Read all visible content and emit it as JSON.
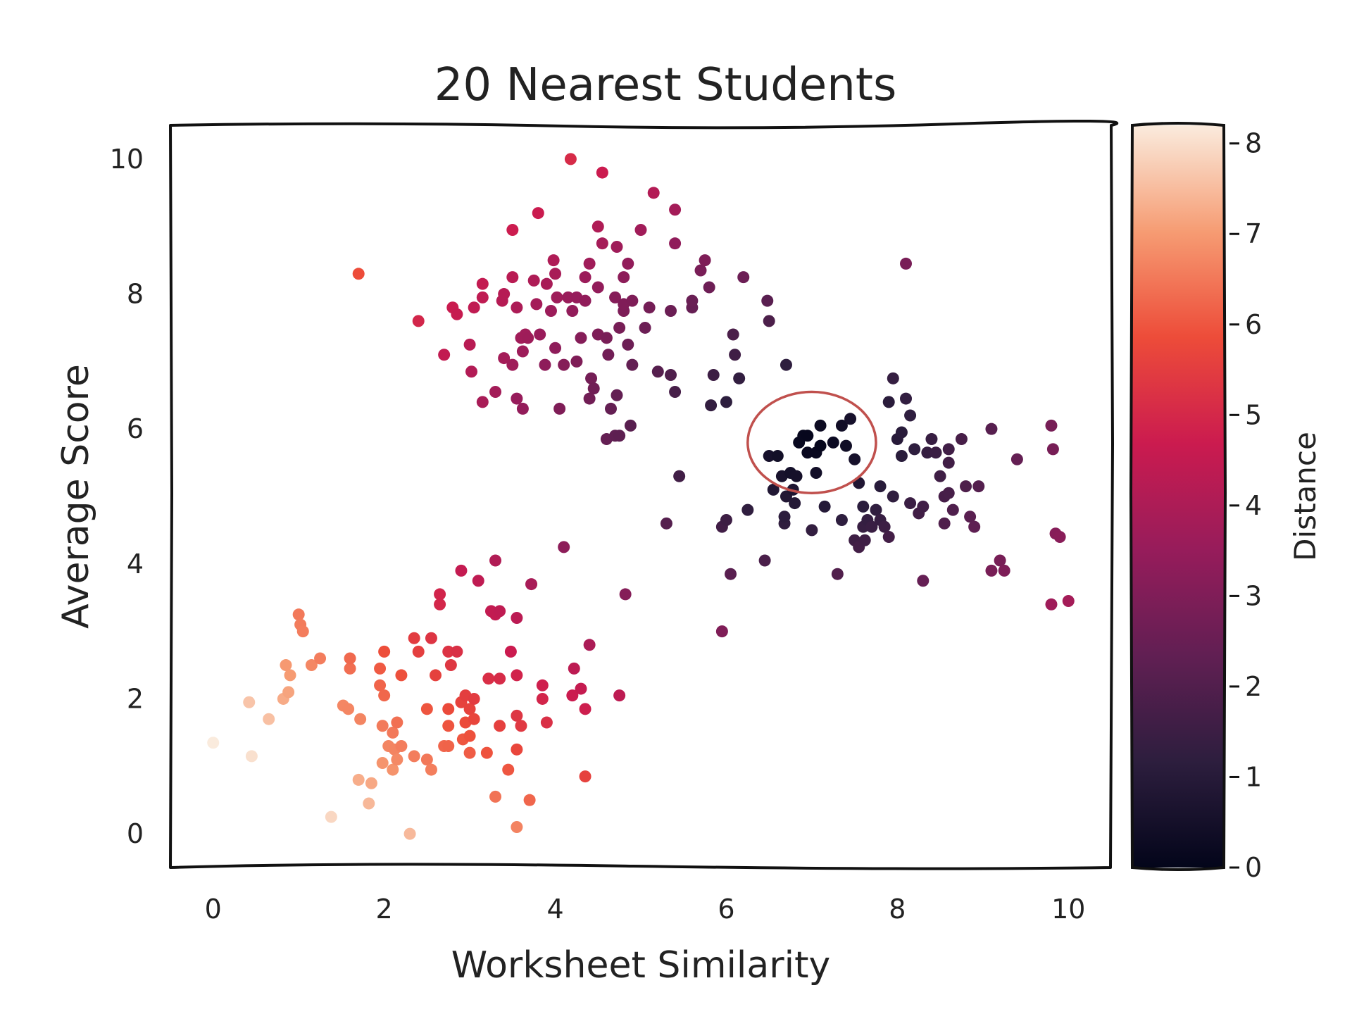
{
  "chart_data": {
    "type": "scatter",
    "title": "20 Nearest Students",
    "xlabel": "Worksheet Similarity",
    "ylabel": "Average Score",
    "xlim": [
      -0.5,
      10.5
    ],
    "ylim": [
      -0.5,
      10.5
    ],
    "xticks": [
      "0",
      "2",
      "4",
      "6",
      "8",
      "10"
    ],
    "yticks": [
      "0",
      "2",
      "4",
      "6",
      "8",
      "10"
    ],
    "grid": false,
    "query_point": [
      7.0,
      5.8
    ],
    "nearest_circle": {
      "center": [
        7.0,
        5.8
      ],
      "rx": 0.75,
      "ry": 0.75
    },
    "colorbar": {
      "label": "Distance",
      "range": [
        0,
        8.2
      ],
      "ticks": [
        "0",
        "1",
        "2",
        "3",
        "4",
        "5",
        "6",
        "7",
        "8"
      ],
      "colormap": "rocket",
      "colors": [
        "#03051a",
        "#2d1e3e",
        "#611f53",
        "#971c5b",
        "#cb1b4f",
        "#ed4c39",
        "#f69c73",
        "#faebdd"
      ]
    },
    "points": [
      [
        0.0,
        1.35
      ],
      [
        0.45,
        1.15
      ],
      [
        0.42,
        1.95
      ],
      [
        0.65,
        1.7
      ],
      [
        0.82,
        2.0
      ],
      [
        0.88,
        2.1
      ],
      [
        0.9,
        2.35
      ],
      [
        0.85,
        2.5
      ],
      [
        1.0,
        3.25
      ],
      [
        1.02,
        3.1
      ],
      [
        1.05,
        3.0
      ],
      [
        1.15,
        2.5
      ],
      [
        1.25,
        2.6
      ],
      [
        1.38,
        0.25
      ],
      [
        1.52,
        1.9
      ],
      [
        1.58,
        1.85
      ],
      [
        1.6,
        2.45
      ],
      [
        1.6,
        2.6
      ],
      [
        1.7,
        8.3
      ],
      [
        1.72,
        1.7
      ],
      [
        1.7,
        0.8
      ],
      [
        1.82,
        0.45
      ],
      [
        1.85,
        0.75
      ],
      [
        1.95,
        2.2
      ],
      [
        1.95,
        2.45
      ],
      [
        2.0,
        2.05
      ],
      [
        1.98,
        1.6
      ],
      [
        1.98,
        1.05
      ],
      [
        2.05,
        1.3
      ],
      [
        2.0,
        2.7
      ],
      [
        2.1,
        1.5
      ],
      [
        2.12,
        1.25
      ],
      [
        2.1,
        0.95
      ],
      [
        2.15,
        1.1
      ],
      [
        2.15,
        1.65
      ],
      [
        2.2,
        2.35
      ],
      [
        2.2,
        1.3
      ],
      [
        2.3,
        0.0
      ],
      [
        2.35,
        1.15
      ],
      [
        2.4,
        2.7
      ],
      [
        2.35,
        2.9
      ],
      [
        2.4,
        7.6
      ],
      [
        2.5,
        1.1
      ],
      [
        2.5,
        1.85
      ],
      [
        2.55,
        0.95
      ],
      [
        2.55,
        2.9
      ],
      [
        2.6,
        2.35
      ],
      [
        2.65,
        3.4
      ],
      [
        2.65,
        3.55
      ],
      [
        2.7,
        1.3
      ],
      [
        2.75,
        1.6
      ],
      [
        2.75,
        1.85
      ],
      [
        2.75,
        1.3
      ],
      [
        2.7,
        7.1
      ],
      [
        2.75,
        2.7
      ],
      [
        2.78,
        2.5
      ],
      [
        2.8,
        7.8
      ],
      [
        2.85,
        7.7
      ],
      [
        2.85,
        2.7
      ],
      [
        2.9,
        1.95
      ],
      [
        2.92,
        1.4
      ],
      [
        2.9,
        3.9
      ],
      [
        2.95,
        1.65
      ],
      [
        2.95,
        2.05
      ],
      [
        3.0,
        1.2
      ],
      [
        3.0,
        1.45
      ],
      [
        3.0,
        1.85
      ],
      [
        3.0,
        7.25
      ],
      [
        3.02,
        6.85
      ],
      [
        3.05,
        2.0
      ],
      [
        3.05,
        1.7
      ],
      [
        3.05,
        7.8
      ],
      [
        3.1,
        3.75
      ],
      [
        3.15,
        6.4
      ],
      [
        3.15,
        8.15
      ],
      [
        3.15,
        7.95
      ],
      [
        3.2,
        1.2
      ],
      [
        3.22,
        2.3
      ],
      [
        3.25,
        3.3
      ],
      [
        3.3,
        3.25
      ],
      [
        3.3,
        0.55
      ],
      [
        3.3,
        4.05
      ],
      [
        3.3,
        6.55
      ],
      [
        3.35,
        3.3
      ],
      [
        3.35,
        1.6
      ],
      [
        3.35,
        2.3
      ],
      [
        3.38,
        7.9
      ],
      [
        3.4,
        7.05
      ],
      [
        3.4,
        8.0
      ],
      [
        3.45,
        0.95
      ],
      [
        3.48,
        2.7
      ],
      [
        3.5,
        6.95
      ],
      [
        3.55,
        1.25
      ],
      [
        3.5,
        8.25
      ],
      [
        3.55,
        3.2
      ],
      [
        3.55,
        2.35
      ],
      [
        3.55,
        1.75
      ],
      [
        3.55,
        6.45
      ],
      [
        3.5,
        8.95
      ],
      [
        3.55,
        0.1
      ],
      [
        3.55,
        7.8
      ],
      [
        3.6,
        7.35
      ],
      [
        3.6,
        1.6
      ],
      [
        3.62,
        6.3
      ],
      [
        3.62,
        7.15
      ],
      [
        3.65,
        7.4
      ],
      [
        3.68,
        7.35
      ],
      [
        3.7,
        0.5
      ],
      [
        3.72,
        3.7
      ],
      [
        3.75,
        8.2
      ],
      [
        3.78,
        7.85
      ],
      [
        3.8,
        9.2
      ],
      [
        3.82,
        7.4
      ],
      [
        3.85,
        2.2
      ],
      [
        3.85,
        2.0
      ],
      [
        3.88,
        6.95
      ],
      [
        3.9,
        1.65
      ],
      [
        3.9,
        8.15
      ],
      [
        3.95,
        7.75
      ],
      [
        3.98,
        8.5
      ],
      [
        4.0,
        7.2
      ],
      [
        4.0,
        8.3
      ],
      [
        4.02,
        7.95
      ],
      [
        4.05,
        6.3
      ],
      [
        4.1,
        4.25
      ],
      [
        4.1,
        6.95
      ],
      [
        4.15,
        7.95
      ],
      [
        4.18,
        10.0
      ],
      [
        4.2,
        7.75
      ],
      [
        4.25,
        7.0
      ],
      [
        4.2,
        2.05
      ],
      [
        4.22,
        2.45
      ],
      [
        4.25,
        7.95
      ],
      [
        4.3,
        2.15
      ],
      [
        4.35,
        0.85
      ],
      [
        4.35,
        1.85
      ],
      [
        4.3,
        7.35
      ],
      [
        4.35,
        8.25
      ],
      [
        4.4,
        8.45
      ],
      [
        4.35,
        7.9
      ],
      [
        4.4,
        2.8
      ],
      [
        4.4,
        6.45
      ],
      [
        4.42,
        6.75
      ],
      [
        4.45,
        6.6
      ],
      [
        4.5,
        9.0
      ],
      [
        4.5,
        8.1
      ],
      [
        4.5,
        7.4
      ],
      [
        4.55,
        9.8
      ],
      [
        4.55,
        8.75
      ],
      [
        4.6,
        7.35
      ],
      [
        4.6,
        5.85
      ],
      [
        4.62,
        7.1
      ],
      [
        4.65,
        6.3
      ],
      [
        4.7,
        7.95
      ],
      [
        4.7,
        5.9
      ],
      [
        4.72,
        8.7
      ],
      [
        4.72,
        6.5
      ],
      [
        4.75,
        2.05
      ],
      [
        4.75,
        5.9
      ],
      [
        4.75,
        7.5
      ],
      [
        4.8,
        8.25
      ],
      [
        4.8,
        7.75
      ],
      [
        4.8,
        7.85
      ],
      [
        4.82,
        3.55
      ],
      [
        4.85,
        7.25
      ],
      [
        4.85,
        8.45
      ],
      [
        4.88,
        6.05
      ],
      [
        4.9,
        6.95
      ],
      [
        4.9,
        7.9
      ],
      [
        5.0,
        8.95
      ],
      [
        5.05,
        7.5
      ],
      [
        5.1,
        7.8
      ],
      [
        5.15,
        9.5
      ],
      [
        5.2,
        6.85
      ],
      [
        5.35,
        7.75
      ],
      [
        5.3,
        4.6
      ],
      [
        5.35,
        6.8
      ],
      [
        5.4,
        9.25
      ],
      [
        5.4,
        8.75
      ],
      [
        5.4,
        6.55
      ],
      [
        5.45,
        5.3
      ],
      [
        5.6,
        7.8
      ],
      [
        5.6,
        7.9
      ],
      [
        5.7,
        8.35
      ],
      [
        5.75,
        8.5
      ],
      [
        5.8,
        8.1
      ],
      [
        5.82,
        6.35
      ],
      [
        5.85,
        6.8
      ],
      [
        5.95,
        4.55
      ],
      [
        5.95,
        3.0
      ],
      [
        6.0,
        4.65
      ],
      [
        6.0,
        6.4
      ],
      [
        6.05,
        3.85
      ],
      [
        6.08,
        7.4
      ],
      [
        6.1,
        7.1
      ],
      [
        6.15,
        6.75
      ],
      [
        6.2,
        8.25
      ],
      [
        6.25,
        4.8
      ],
      [
        6.45,
        4.05
      ],
      [
        6.48,
        7.9
      ],
      [
        6.5,
        7.6
      ],
      [
        6.5,
        5.6
      ],
      [
        6.55,
        5.1
      ],
      [
        6.6,
        5.6
      ],
      [
        6.65,
        5.3
      ],
      [
        6.7,
        5.0
      ],
      [
        6.68,
        4.6
      ],
      [
        6.68,
        4.7
      ],
      [
        6.7,
        6.95
      ],
      [
        6.75,
        5.35
      ],
      [
        6.78,
        5.1
      ],
      [
        6.8,
        4.9
      ],
      [
        6.82,
        5.3
      ],
      [
        6.85,
        5.8
      ],
      [
        6.9,
        5.9
      ],
      [
        6.95,
        5.9
      ],
      [
        6.95,
        5.65
      ],
      [
        7.0,
        4.5
      ],
      [
        7.05,
        5.35
      ],
      [
        7.05,
        5.65
      ],
      [
        7.1,
        6.05
      ],
      [
        7.1,
        5.75
      ],
      [
        7.15,
        4.85
      ],
      [
        7.25,
        5.8
      ],
      [
        7.3,
        3.85
      ],
      [
        7.35,
        6.05
      ],
      [
        7.35,
        4.65
      ],
      [
        7.4,
        5.75
      ],
      [
        7.45,
        6.15
      ],
      [
        7.5,
        5.55
      ],
      [
        7.5,
        4.35
      ],
      [
        7.55,
        5.2
      ],
      [
        7.55,
        4.25
      ],
      [
        7.6,
        4.55
      ],
      [
        7.6,
        4.85
      ],
      [
        7.62,
        4.35
      ],
      [
        7.65,
        4.65
      ],
      [
        7.7,
        4.55
      ],
      [
        7.75,
        4.8
      ],
      [
        7.8,
        5.15
      ],
      [
        7.8,
        4.65
      ],
      [
        7.85,
        4.55
      ],
      [
        7.9,
        4.4
      ],
      [
        7.9,
        6.4
      ],
      [
        7.95,
        5.0
      ],
      [
        7.95,
        6.75
      ],
      [
        8.0,
        5.85
      ],
      [
        8.05,
        5.95
      ],
      [
        8.05,
        5.6
      ],
      [
        8.1,
        8.45
      ],
      [
        8.1,
        6.45
      ],
      [
        8.15,
        6.2
      ],
      [
        8.15,
        4.9
      ],
      [
        8.2,
        5.7
      ],
      [
        8.25,
        4.75
      ],
      [
        8.3,
        4.85
      ],
      [
        8.3,
        3.75
      ],
      [
        8.35,
        5.65
      ],
      [
        8.4,
        5.85
      ],
      [
        8.45,
        5.65
      ],
      [
        8.5,
        5.3
      ],
      [
        8.55,
        5.0
      ],
      [
        8.55,
        4.6
      ],
      [
        8.6,
        5.5
      ],
      [
        8.6,
        5.05
      ],
      [
        8.6,
        5.7
      ],
      [
        8.65,
        4.8
      ],
      [
        8.75,
        5.85
      ],
      [
        8.8,
        5.15
      ],
      [
        8.85,
        4.7
      ],
      [
        8.9,
        4.55
      ],
      [
        8.95,
        5.15
      ],
      [
        9.1,
        3.9
      ],
      [
        9.1,
        6.0
      ],
      [
        9.2,
        4.05
      ],
      [
        9.25,
        3.9
      ],
      [
        9.4,
        5.55
      ],
      [
        9.8,
        6.05
      ],
      [
        9.82,
        5.7
      ],
      [
        9.85,
        4.45
      ],
      [
        9.9,
        4.4
      ],
      [
        9.8,
        3.4
      ],
      [
        10.0,
        3.45
      ]
    ]
  }
}
